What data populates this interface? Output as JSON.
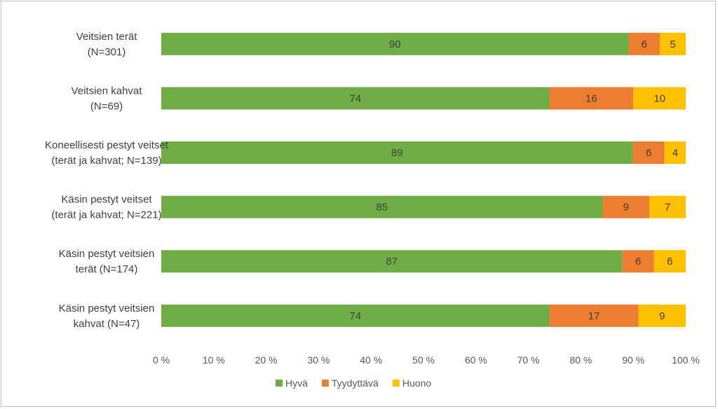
{
  "chart_data": {
    "type": "bar",
    "orientation": "horizontal",
    "stacked": true,
    "percent_stacked": true,
    "categories": [
      [
        "Veitsien terät",
        "(N=301)"
      ],
      [
        "Veitsien kahvat",
        "(N=69)"
      ],
      [
        "Koneellisesti pestyt veitset",
        "(terät ja kahvat; N=139)"
      ],
      [
        "Käsin pestyt veitset",
        "(terät ja kahvat; N=221)"
      ],
      [
        "Käsin pestyt veitsien",
        "terät (N=174)"
      ],
      [
        "Käsin pestyt veitsien",
        "kahvat (N=47)"
      ]
    ],
    "series": [
      {
        "name": "Hyvä",
        "color": "#70ad47",
        "values": [
          90,
          74,
          89,
          85,
          87,
          74
        ]
      },
      {
        "name": "Tyydyttävä",
        "color": "#ed7d31",
        "values": [
          6,
          16,
          6,
          9,
          6,
          17
        ]
      },
      {
        "name": "Huono",
        "color": "#ffc000",
        "values": [
          5,
          10,
          4,
          7,
          6,
          9
        ]
      }
    ],
    "xlim": [
      0,
      100
    ],
    "xticks": [
      "0 %",
      "10 %",
      "20 %",
      "30 %",
      "40 %",
      "50 %",
      "60 %",
      "70 %",
      "80 %",
      "90 %",
      "100 %"
    ],
    "grid": false,
    "legend_position": "bottom"
  }
}
